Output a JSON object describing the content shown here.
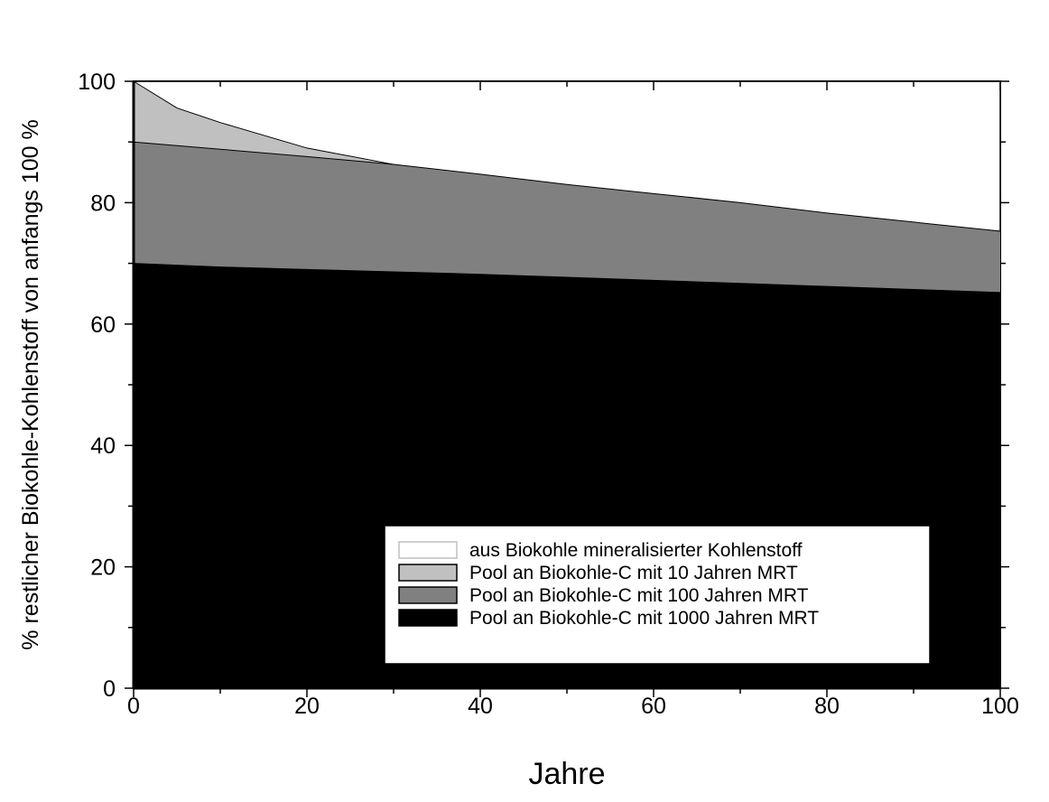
{
  "chart_data": {
    "type": "area",
    "title": "",
    "xlabel": "Jahre",
    "ylabel": "% restlicher Biokohle-Kohlenstoff von anfangs 100 %",
    "xlim": [
      0,
      100
    ],
    "ylim": [
      0,
      100
    ],
    "x_ticks": [
      "0",
      "20",
      "40",
      "60",
      "80",
      "100"
    ],
    "y_ticks": [
      "0",
      "20",
      "40",
      "60",
      "80",
      "100"
    ],
    "grid": false,
    "legend_position": "bottom-right",
    "x": [
      0,
      5,
      10,
      20,
      30,
      40,
      50,
      60,
      70,
      80,
      90,
      100
    ],
    "series": [
      {
        "name": "aus Biokohle mineralisierter Kohlenstoff",
        "color": "#ffffff",
        "values": [
          100,
          100,
          100,
          100,
          100,
          100,
          100,
          100,
          100,
          100,
          100,
          100
        ]
      },
      {
        "name": "Pool an Biokohle-C mit 10 Jahren MRT",
        "color": "#c0c0c0",
        "values": [
          100,
          95.6,
          93.2,
          89.0,
          86.3,
          84.2,
          82.4,
          80.7,
          79.3,
          77.9,
          76.6,
          75.3
        ]
      },
      {
        "name": "Pool an Biokohle-C mit 100 Jahren MRT",
        "color": "#808080",
        "values": [
          90,
          89.4,
          88.8,
          87.6,
          86.3,
          84.7,
          83.0,
          81.5,
          80.0,
          78.3,
          76.8,
          75.3
        ]
      },
      {
        "name": "Pool an Biokohle-C mit 1000 Jahren MRT",
        "color": "#000000",
        "values": [
          70,
          69.7,
          69.4,
          69.0,
          68.6,
          68.2,
          67.7,
          67.2,
          66.7,
          66.2,
          65.7,
          65.2
        ]
      }
    ]
  }
}
